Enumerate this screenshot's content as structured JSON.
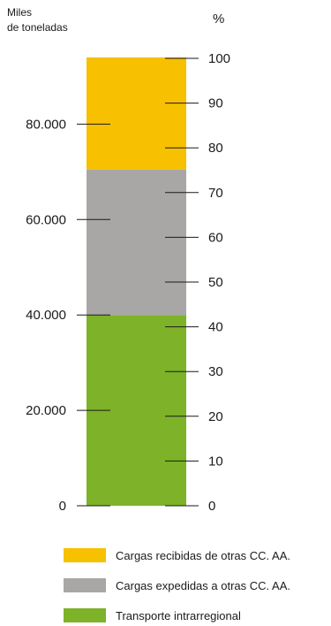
{
  "chart_data": {
    "type": "bar",
    "stacked": true,
    "categories": [
      ""
    ],
    "series": [
      {
        "name": "Transporte intrarregional",
        "values": [
          40000
        ],
        "color": "#7db229"
      },
      {
        "name": "Cargas expedidas a otras CC. AA.",
        "values": [
          30500
        ],
        "color": "#a9a7a6"
      },
      {
        "name": "Cargas recibidas de otras CC. AA.",
        "values": [
          23500
        ],
        "color": "#f7c000"
      }
    ],
    "left_axis": {
      "label_lines": [
        "Miles",
        "de toneladas"
      ],
      "ticks": [
        0,
        20000,
        40000,
        60000,
        80000
      ],
      "tick_labels": [
        "0",
        "20.000",
        "40.000",
        "60.000",
        "80.000"
      ],
      "range": [
        0,
        94000
      ]
    },
    "right_axis": {
      "label": "%",
      "ticks": [
        0,
        10,
        20,
        30,
        40,
        50,
        60,
        70,
        80,
        90,
        100
      ],
      "tick_labels": [
        "0",
        "10",
        "20",
        "30",
        "40",
        "50",
        "60",
        "70",
        "80",
        "90",
        "100"
      ],
      "range": [
        0,
        100
      ]
    },
    "legend": {
      "placement": "bottom",
      "order": [
        2,
        1,
        0
      ]
    },
    "grid": false
  }
}
